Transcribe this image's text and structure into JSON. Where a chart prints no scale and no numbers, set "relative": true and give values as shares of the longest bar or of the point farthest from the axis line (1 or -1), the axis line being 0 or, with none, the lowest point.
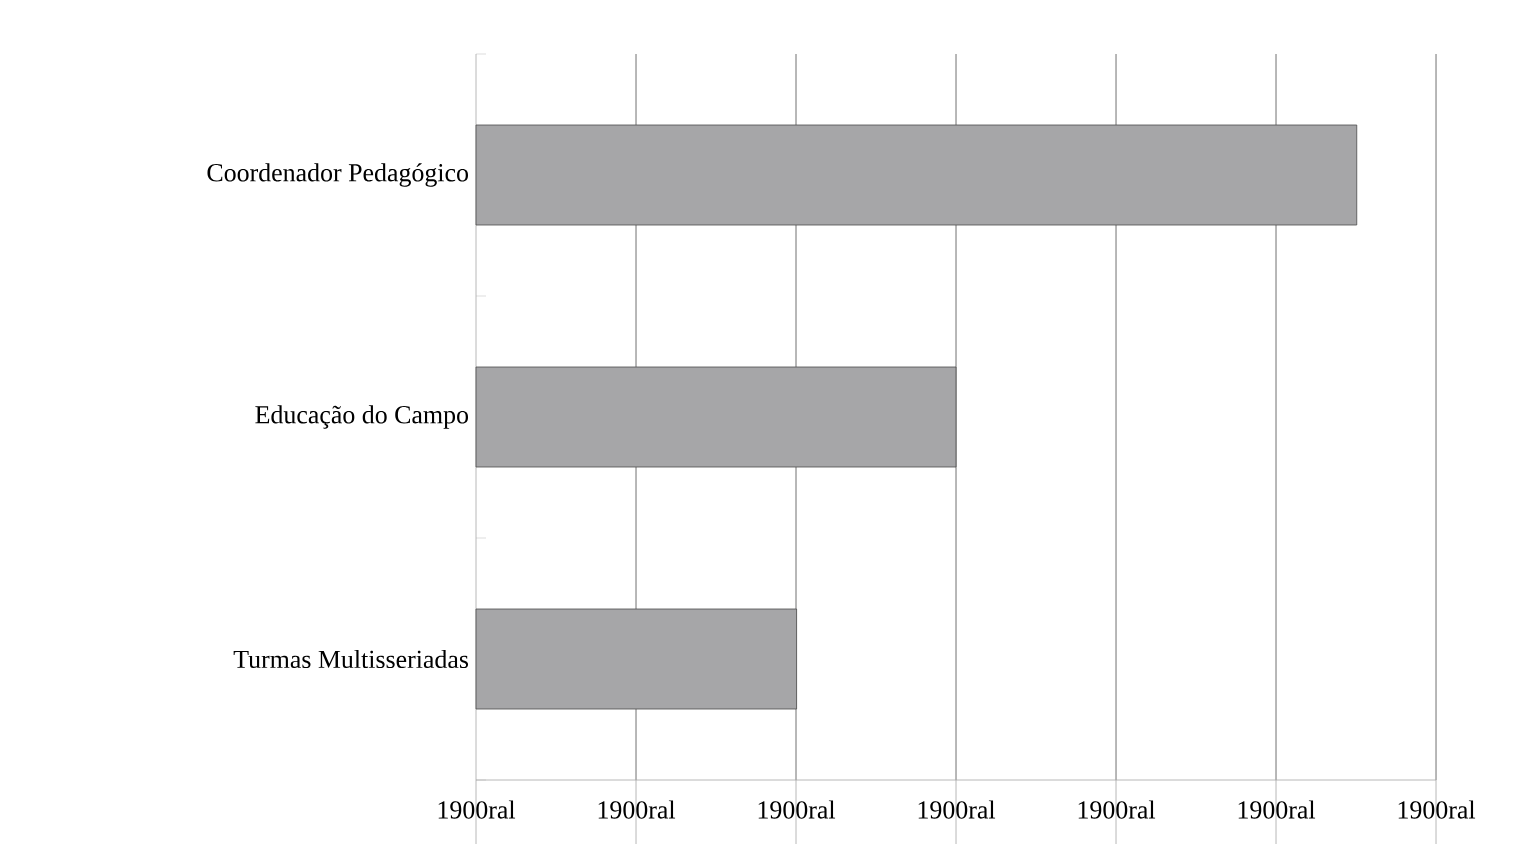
{
  "chart_data": {
    "type": "bar",
    "orientation": "horizontal",
    "relative": true,
    "categories": [
      "Coordenador Pedagógico",
      "Educação do Campo",
      "Turmas Multisseriadas"
    ],
    "values": [
      1,
      0.545,
      0.364
    ],
    "color": "#a6a6a8",
    "grid": "x",
    "annotations": [
      "1900ral",
      "1900ral",
      "1900ral",
      "1900ral",
      "1900ral",
      "1900ral",
      "1900ral"
    ]
  }
}
